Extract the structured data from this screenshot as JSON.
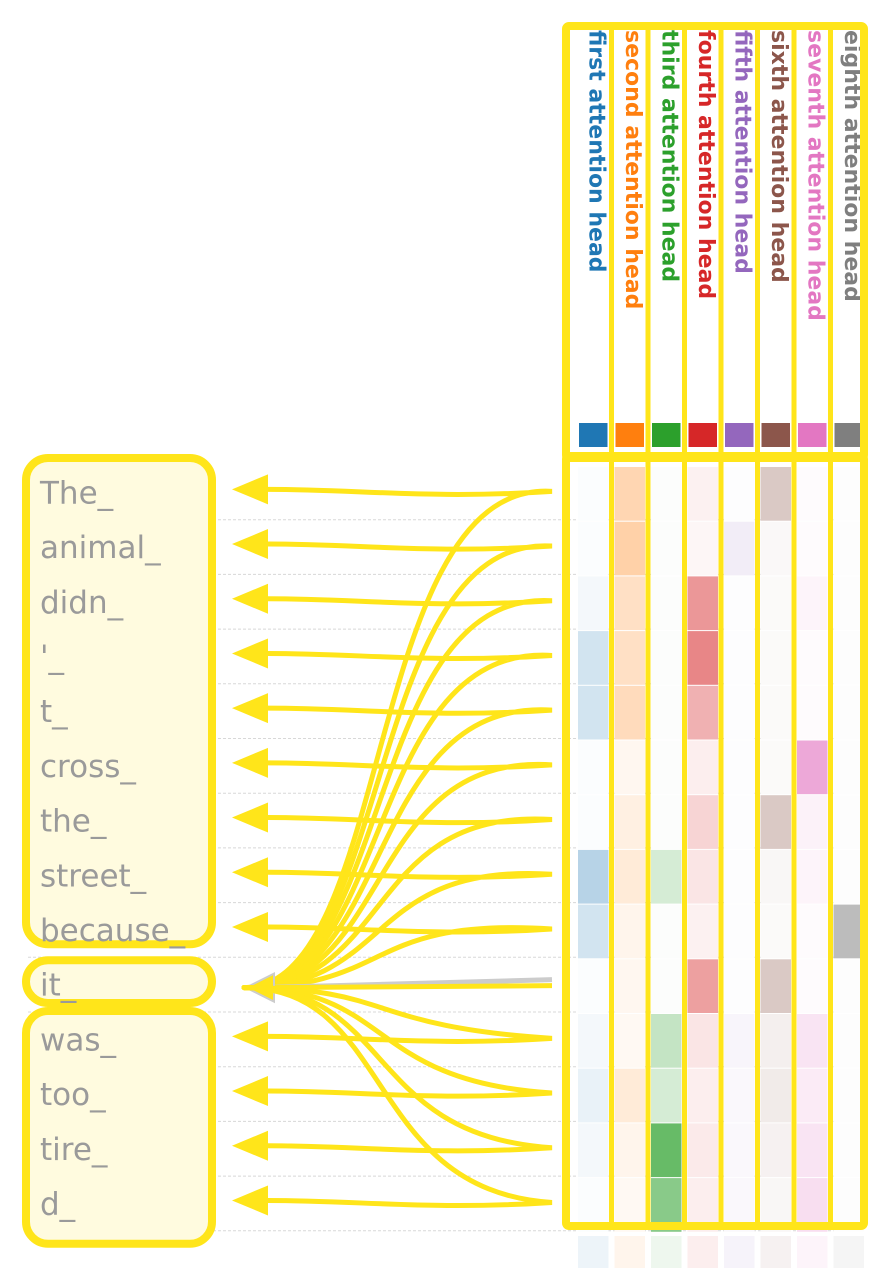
{
  "tokens": [
    "The_",
    "animal_",
    "didn_",
    "'_",
    "t_",
    "cross_",
    "the_",
    "street_",
    "because_",
    "it_",
    "was_",
    "too_",
    "tire_",
    "d_"
  ],
  "query_token": "it_",
  "heads": [
    {
      "label": "first attention head",
      "color": "#1f77b4"
    },
    {
      "label": "second attention head",
      "color": "#ff7f0e"
    },
    {
      "label": "third attention head",
      "color": "#2ca02c"
    },
    {
      "label": "fourth attention head",
      "color": "#d62728"
    },
    {
      "label": "fifth attention head",
      "color": "#9467bd"
    },
    {
      "label": "sixth attention head",
      "color": "#8c564b"
    },
    {
      "label": "seventh attention head",
      "color": "#e377c2"
    },
    {
      "label": "eighth attention head",
      "color": "#7f7f7f"
    }
  ],
  "attention_weights": [
    [
      0.02,
      0.4,
      0.02,
      0.08,
      0.02,
      0.4,
      0.04,
      0.02
    ],
    [
      0.02,
      0.45,
      0.02,
      0.05,
      0.15,
      0.05,
      0.04,
      0.02
    ],
    [
      0.06,
      0.3,
      0.02,
      0.6,
      0.02,
      0.04,
      0.1,
      0.02
    ],
    [
      0.25,
      0.3,
      0.02,
      0.7,
      0.02,
      0.04,
      0.04,
      0.02
    ],
    [
      0.25,
      0.35,
      0.02,
      0.45,
      0.02,
      0.04,
      0.04,
      0.02
    ],
    [
      0.02,
      0.08,
      0.02,
      0.1,
      0.02,
      0.04,
      0.8,
      0.02
    ],
    [
      0.02,
      0.15,
      0.02,
      0.25,
      0.02,
      0.4,
      0.12,
      0.02
    ],
    [
      0.4,
      0.2,
      0.25,
      0.15,
      0.02,
      0.06,
      0.1,
      0.02
    ],
    [
      0.25,
      0.1,
      0.02,
      0.08,
      0.02,
      0.04,
      0.04,
      0.65
    ],
    [
      0.02,
      0.08,
      0.02,
      0.55,
      0.02,
      0.4,
      0.04,
      0.02
    ],
    [
      0.06,
      0.06,
      0.35,
      0.15,
      0.08,
      0.12,
      0.25,
      0.02
    ],
    [
      0.12,
      0.2,
      0.25,
      0.1,
      0.06,
      0.15,
      0.18,
      0.02
    ],
    [
      0.06,
      0.1,
      0.9,
      0.12,
      0.06,
      0.1,
      0.25,
      0.02
    ],
    [
      0.02,
      0.06,
      0.7,
      0.1,
      0.06,
      0.06,
      0.3,
      0.02
    ]
  ],
  "colors": {
    "highlight": "#ffe51a",
    "token_fill": "#fffbdf",
    "separator": "#d8d8d8"
  }
}
